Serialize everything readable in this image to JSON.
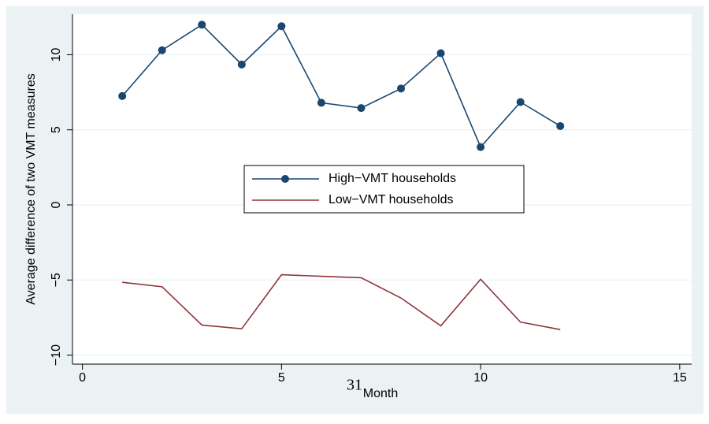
{
  "chart_data": {
    "type": "line",
    "x_label": "Month",
    "y_label": "Average difference of two VMT measures",
    "annotation": "31",
    "x": [
      1,
      2,
      3,
      4,
      5,
      6,
      7,
      8,
      9,
      10,
      11,
      12
    ],
    "series": [
      {
        "name": "High−VMT households",
        "color": "#1a476f",
        "markers": true,
        "values": [
          7.25,
          10.3,
          12.0,
          9.35,
          11.9,
          6.8,
          6.45,
          7.75,
          10.1,
          3.85,
          6.85,
          5.25
        ]
      },
      {
        "name": "Low−VMT households",
        "color": "#90353b",
        "markers": false,
        "values": [
          -5.15,
          -5.45,
          -8.0,
          -8.25,
          -4.65,
          -4.75,
          -4.85,
          -6.2,
          -8.05,
          -4.95,
          -7.8,
          -8.3
        ]
      }
    ],
    "xlim": [
      -0.25,
      15.3
    ],
    "xticks": [
      0,
      5,
      10,
      15
    ],
    "ylim": [
      -10.6,
      12.7
    ],
    "yticks": [
      {
        "value": -10,
        "label": "−10"
      },
      {
        "value": -5,
        "label": "−5"
      },
      0,
      5,
      10
    ],
    "grid": true
  }
}
